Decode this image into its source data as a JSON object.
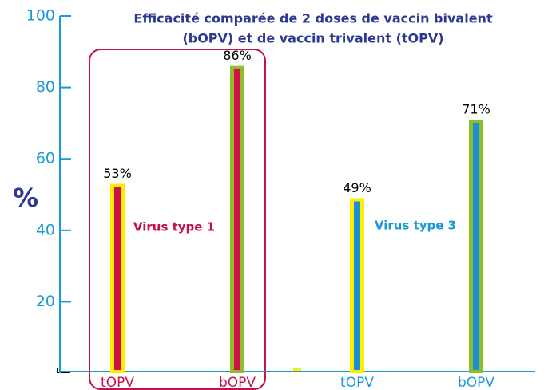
{
  "chart_data": {
    "type": "bar",
    "title_lines": [
      "Efficacité comparée de 2 doses de  vaccin bivalent",
      "(bOPV) et de vaccin trivalent (tOPV)"
    ],
    "y_label": "%",
    "categories": [
      "tOPV",
      "bOPV",
      "tOPV",
      "bOPV"
    ],
    "values": [
      53,
      86,
      49,
      71
    ],
    "value_labels": [
      "53%",
      "86%",
      "49%",
      "71%"
    ],
    "bar_colors": [
      "#d0104c",
      "#d0104c",
      "#1a8fd6",
      "#1a8fd6"
    ],
    "outline_colors": [
      "#ffee00",
      "#8dbe2a",
      "#ffee00",
      "#8dbe2a"
    ],
    "label_colors": [
      "#c0114e",
      "#c0114e",
      "#1a9ad6",
      "#1a9ad6"
    ],
    "annotations": [
      {
        "text": "Virus type 1",
        "color": "#c0114e"
      },
      {
        "text": "Virus type 3",
        "color": "#1a9ad6"
      }
    ],
    "ylim": [
      0,
      100
    ],
    "yticks": [
      20,
      40,
      60,
      80,
      100
    ],
    "axis_color": "#1a9ad6"
  }
}
